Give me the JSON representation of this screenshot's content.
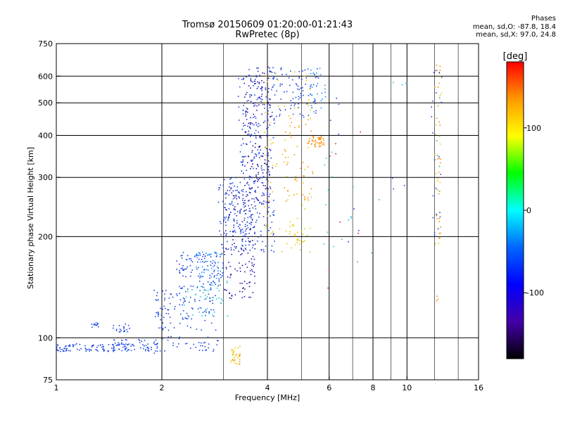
{
  "title": {
    "line1": "Tromsø 20150609 01:20:00-01:21:43",
    "line2": "RwPretec (8p)"
  },
  "phases": {
    "header": "Phases",
    "o_stats": "mean, sd,O: -87.8, 18.4",
    "x_stats": "mean, sd,X:  97.0, 24.8"
  },
  "chart_data": {
    "type": "scatter",
    "xlabel": "Frequency [MHz]",
    "ylabel": "Stationary phase Virtual Height [km]",
    "xscale": "log",
    "yscale": "log",
    "xlim": [
      1,
      16
    ],
    "ylim": [
      75,
      750
    ],
    "xticks": [
      1,
      2,
      4,
      6,
      8,
      10,
      16
    ],
    "xtick_labels": [
      "1",
      "2",
      "4",
      "6",
      "8",
      "10",
      "16"
    ],
    "x_minor_ticks": [
      3,
      5,
      7,
      9,
      12,
      14
    ],
    "yticks": [
      75,
      100,
      200,
      300,
      400,
      500,
      600,
      750
    ],
    "ytick_labels": [
      "75",
      "100",
      "200",
      "300",
      "400",
      "500",
      "600",
      "750"
    ],
    "grid": true,
    "colorbar": {
      "label": "[deg]",
      "range": [
        -180,
        180
      ],
      "ticks": [
        100,
        0,
        -100
      ],
      "tick_labels": [
        "100",
        "0",
        "-100"
      ],
      "stops": [
        "#ff0000",
        "#ff9900",
        "#ffff00",
        "#00ff00",
        "#00ffff",
        "#0066ff",
        "#0000ff",
        "#4400aa",
        "#000000"
      ]
    },
    "point_size": 1.6,
    "colors": {
      "o_mode_blue": "#1c46e0",
      "o_mode_dark": "#2a18a8",
      "o_mode_light": "#1e90ff",
      "cyan": "#22c6dd",
      "x_mode_yellow": "#e8c800",
      "x_mode_orange": "#ff8c00",
      "x_mode_red": "#e02020",
      "green": "#30c040"
    },
    "series": [
      {
        "name": "lowE_trace",
        "color": "o_mode_blue",
        "n": 130,
        "x_range": [
          1.0,
          1.95
        ],
        "y_range": [
          91,
          96
        ]
      },
      {
        "name": "lowE_trace_upper",
        "color": "o_mode_blue",
        "n": 28,
        "x_range": [
          1.45,
          1.95
        ],
        "y_range": [
          95,
          99
        ]
      },
      {
        "name": "E_trace_dots",
        "color": "o_mode_blue",
        "n": 40,
        "x_range": [
          1.9,
          2.9
        ],
        "y_range": [
          90,
          101
        ]
      },
      {
        "name": "Es_blob_low",
        "color": "o_mode_blue",
        "n": 12,
        "x_range": [
          1.26,
          1.32
        ],
        "y_range": [
          107,
          112
        ]
      },
      {
        "name": "Es_blob_mid",
        "color": "o_mode_blue",
        "n": 20,
        "x_range": [
          1.45,
          1.62
        ],
        "y_range": [
          104,
          110
        ]
      },
      {
        "name": "F1_rise_lower",
        "color": "o_mode_blue",
        "n": 110,
        "x_range": [
          1.9,
          2.85
        ],
        "y_range": [
          105,
          140
        ]
      },
      {
        "name": "F1_rise_cyan",
        "color": "cyan",
        "n": 45,
        "x_range": [
          2.3,
          3.1
        ],
        "y_range": [
          115,
          150
        ]
      },
      {
        "name": "F1_band_upper",
        "color": "o_mode_blue",
        "n": 110,
        "x_range": [
          2.2,
          3.0
        ],
        "y_range": [
          140,
          180
        ]
      },
      {
        "name": "F1_band_cyan",
        "color": "o_mode_light",
        "n": 40,
        "x_range": [
          2.5,
          3.0
        ],
        "y_range": [
          150,
          180
        ]
      },
      {
        "name": "F_rise_mid",
        "color": "o_mode_blue",
        "n": 120,
        "x_range": [
          2.9,
          3.6
        ],
        "y_range": [
          180,
          300
        ]
      },
      {
        "name": "F_rise_dark",
        "color": "o_mode_dark",
        "n": 140,
        "x_range": [
          3.0,
          3.7
        ],
        "y_range": [
          130,
          280
        ]
      },
      {
        "name": "F_column_main",
        "color": "o_mode_blue",
        "n": 230,
        "x_range": [
          3.3,
          4.2
        ],
        "y_range": [
          180,
          640
        ]
      },
      {
        "name": "F_column_dark",
        "color": "o_mode_dark",
        "n": 170,
        "x_range": [
          3.4,
          4.1
        ],
        "y_range": [
          250,
          640
        ]
      },
      {
        "name": "F_column_upper",
        "color": "o_mode_blue",
        "n": 90,
        "x_range": [
          4.1,
          5.6
        ],
        "y_range": [
          450,
          640
        ]
      },
      {
        "name": "F_column_right",
        "color": "o_mode_light",
        "n": 25,
        "x_range": [
          5.3,
          5.9
        ],
        "y_range": [
          470,
          640
        ]
      },
      {
        "name": "X_trace_lowE",
        "color": "x_mode_yellow",
        "n": 25,
        "x_range": [
          3.1,
          3.35
        ],
        "y_range": [
          83,
          95
        ]
      },
      {
        "name": "X_trace_lowE_orange",
        "color": "x_mode_orange",
        "n": 8,
        "x_range": [
          3.15,
          3.35
        ],
        "y_range": [
          83,
          90
        ]
      },
      {
        "name": "X_trace_F",
        "color": "x_mode_yellow",
        "n": 75,
        "x_range": [
          3.9,
          5.4
        ],
        "y_range": [
          200,
          640
        ]
      },
      {
        "name": "X_trace_F_orange",
        "color": "x_mode_orange",
        "n": 40,
        "x_range": [
          4.4,
          5.4
        ],
        "y_range": [
          250,
          450
        ]
      },
      {
        "name": "X_cluster_orange",
        "color": "x_mode_orange",
        "n": 45,
        "x_range": [
          5.2,
          5.8
        ],
        "y_range": [
          370,
          400
        ]
      },
      {
        "name": "X_scatter_mid",
        "color": "x_mode_yellow",
        "n": 25,
        "x_range": [
          4.4,
          5.3
        ],
        "y_range": [
          180,
          220
        ]
      },
      {
        "name": "sparse_right_mid",
        "color": "cyan",
        "n": 12,
        "x_range": [
          5.6,
          7.0
        ],
        "y_range": [
          170,
          400
        ]
      },
      {
        "name": "sparse_right_red",
        "color": "x_mode_red",
        "n": 8,
        "x_range": [
          5.8,
          7.4
        ],
        "y_range": [
          140,
          480
        ]
      },
      {
        "name": "sparse_right_blue",
        "color": "o_mode_blue",
        "n": 10,
        "x_range": [
          5.9,
          10.5
        ],
        "y_range": [
          180,
          600
        ]
      },
      {
        "name": "column_12MHz_orange",
        "color": "x_mode_orange",
        "n": 28,
        "x_range": [
          12.1,
          12.5
        ],
        "y_range": [
          195,
          650
        ]
      },
      {
        "name": "column_12MHz_blue",
        "color": "o_mode_blue",
        "n": 22,
        "x_range": [
          11.7,
          12.6
        ],
        "y_range": [
          200,
          650
        ]
      },
      {
        "name": "column_12MHz_yellow",
        "color": "x_mode_yellow",
        "n": 14,
        "x_range": [
          12.0,
          12.6
        ],
        "y_range": [
          190,
          650
        ]
      },
      {
        "name": "column_12MHz_green",
        "color": "green",
        "n": 6,
        "x_range": [
          12.1,
          12.4
        ],
        "y_range": [
          250,
          600
        ]
      },
      {
        "name": "stray_low",
        "color": "x_mode_orange",
        "n": 3,
        "x_range": [
          12.1,
          12.3
        ],
        "y_range": [
          128,
          135
        ]
      },
      {
        "name": "stray_cyan",
        "color": "cyan",
        "n": 4,
        "x_range": [
          9.0,
          10.0
        ],
        "y_range": [
          560,
          580
        ]
      },
      {
        "name": "stray_green",
        "color": "green",
        "n": 5,
        "x_range": [
          6.2,
          9.6
        ],
        "y_range": [
          165,
          290
        ]
      }
    ]
  }
}
